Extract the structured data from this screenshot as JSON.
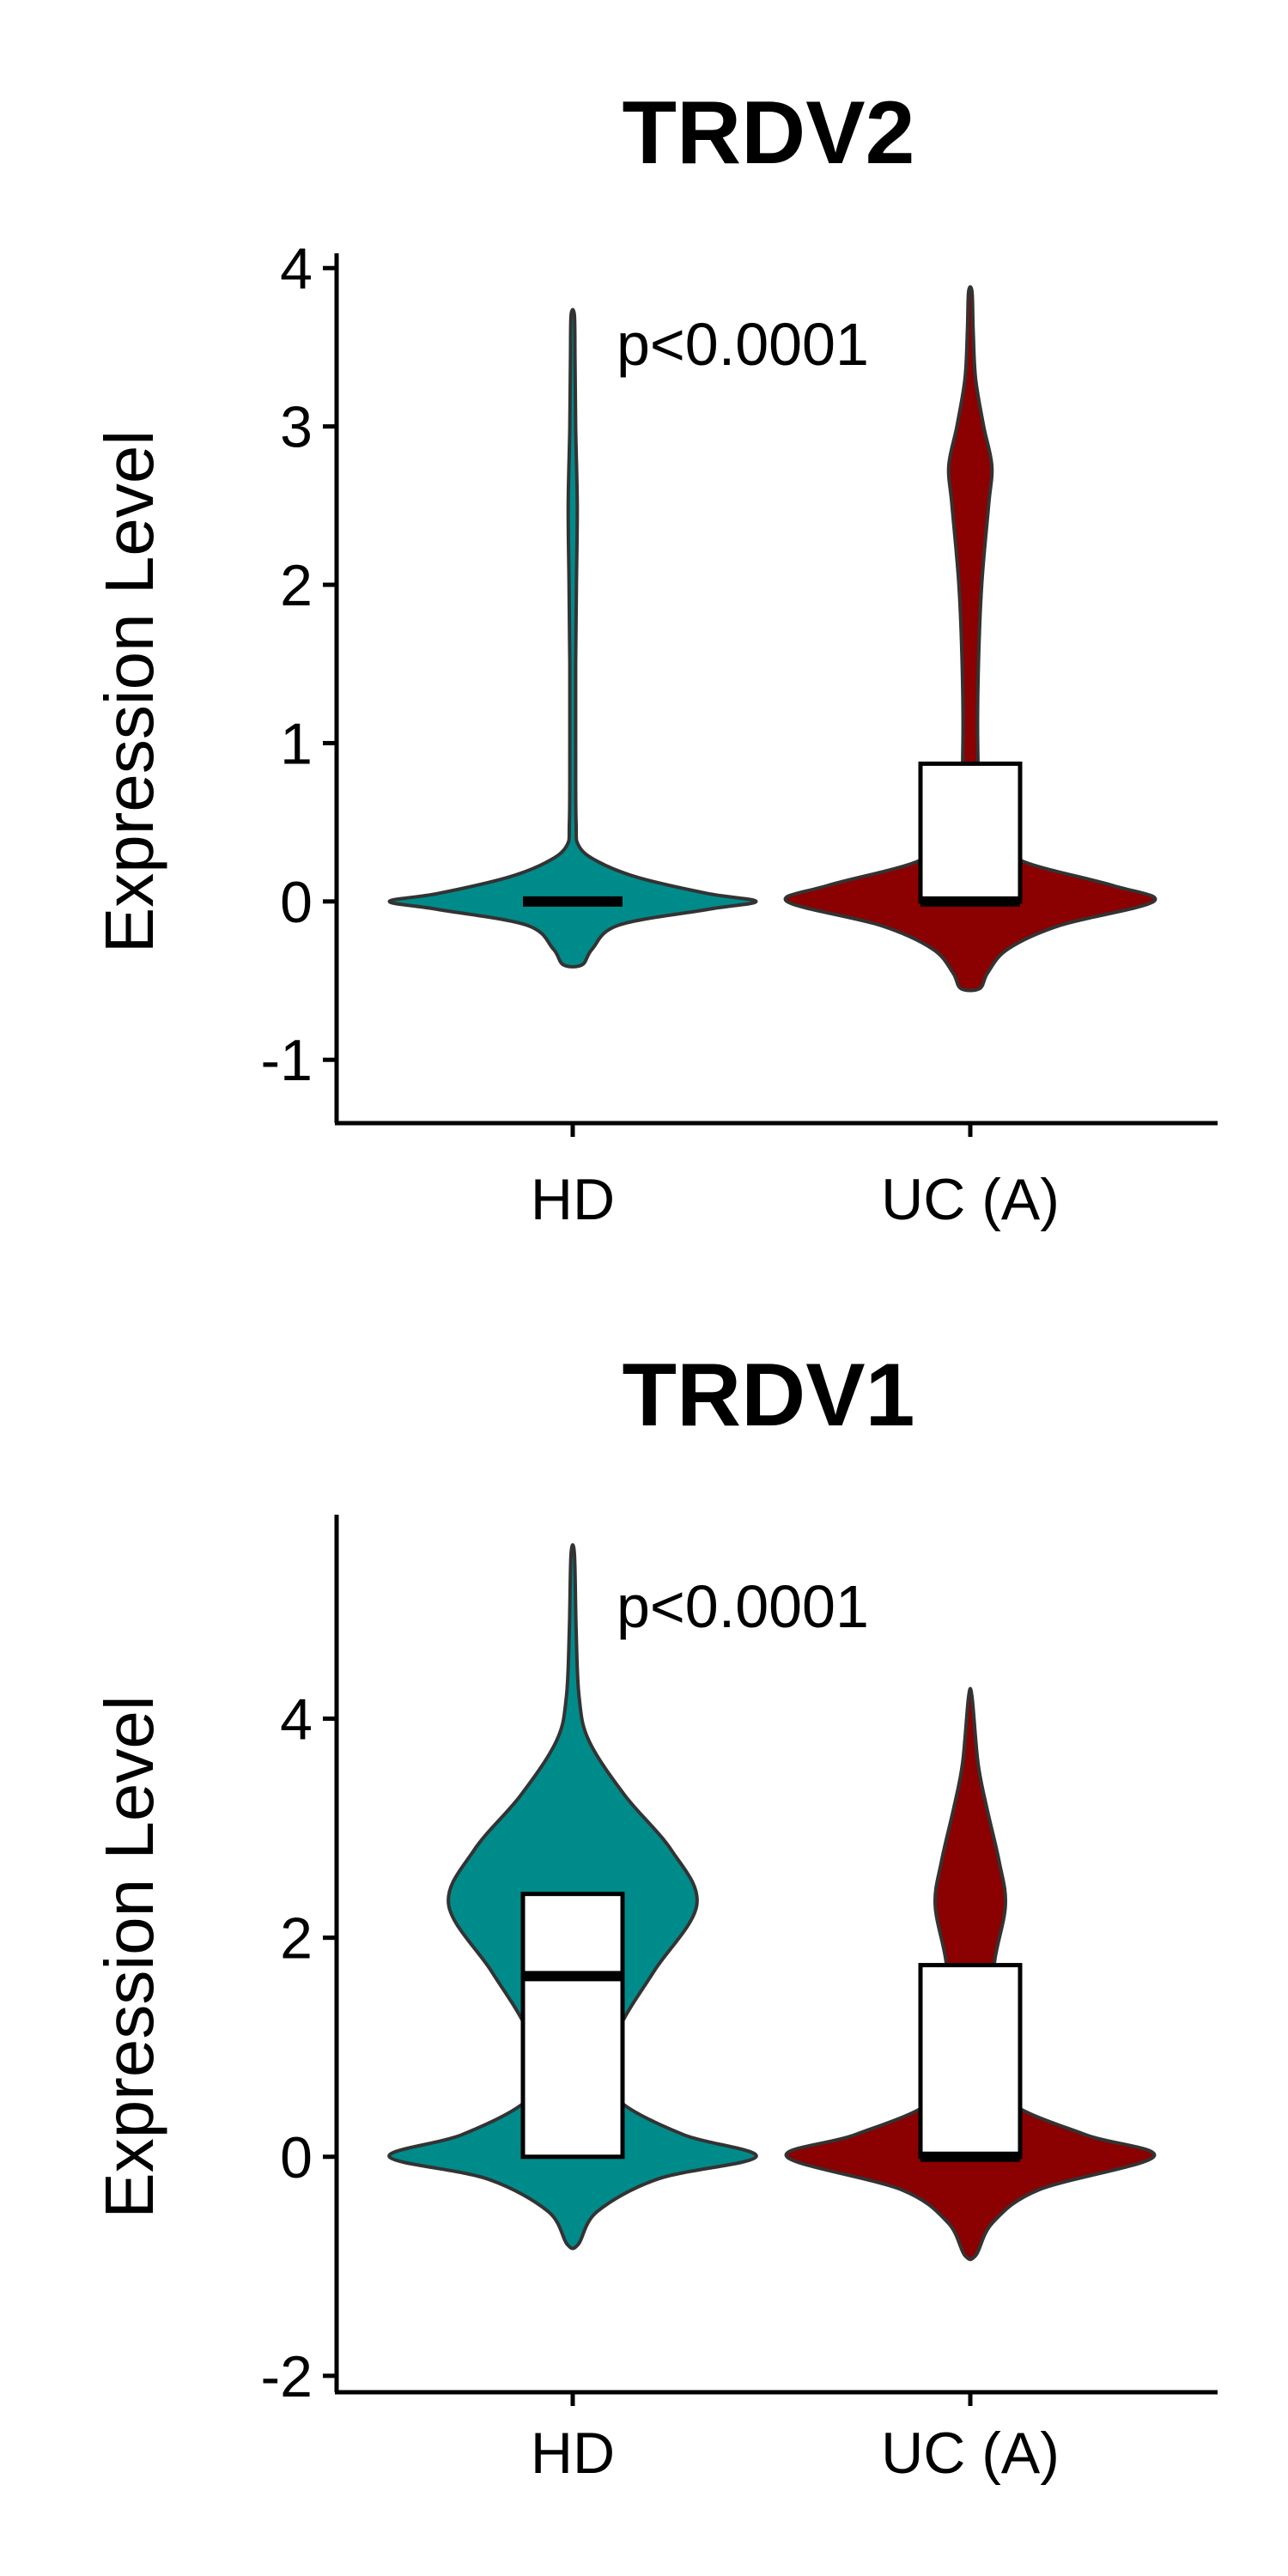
{
  "chart_data": [
    {
      "type": "violin",
      "title": "TRDV2",
      "ylabel": "Expression Level",
      "categories": [
        "HD",
        "UC (A)"
      ],
      "yticks": [
        -1,
        0,
        1,
        2,
        3,
        4
      ],
      "ytick_labels": [
        "-1",
        "0",
        "1",
        "2",
        "3",
        "4"
      ],
      "ylim": [
        -1.4,
        4.05
      ],
      "annotation": "p<0.0001",
      "colors": [
        "#008B8B",
        "#8B0000"
      ],
      "groups": [
        {
          "name": "HD",
          "min": -0.4,
          "max": 3.7,
          "box": {
            "q1": 0,
            "median": 0,
            "q3": 0
          },
          "profile": [
            [
              -0.4,
              0.2
            ],
            [
              -0.3,
              0.45
            ],
            [
              -0.15,
              1.1
            ],
            [
              -0.05,
              3.3
            ],
            [
              0,
              4.5
            ],
            [
              0.05,
              3.3
            ],
            [
              0.15,
              1.6
            ],
            [
              0.25,
              0.6
            ],
            [
              0.35,
              0.12
            ],
            [
              0.5,
              0.05
            ],
            [
              1,
              0.04
            ],
            [
              1.5,
              0.04
            ],
            [
              2,
              0.06
            ],
            [
              2.5,
              0.08
            ],
            [
              3,
              0.04
            ],
            [
              3.4,
              0.025
            ],
            [
              3.7,
              0.01
            ]
          ]
        },
        {
          "name": "UC (A)",
          "min": -0.55,
          "max": 3.85,
          "box": {
            "q1": 0,
            "median": 0,
            "q3": 0.87
          },
          "profile": [
            [
              -0.55,
              0.2
            ],
            [
              -0.45,
              0.4
            ],
            [
              -0.3,
              0.9
            ],
            [
              -0.15,
              2.2
            ],
            [
              0,
              4.5
            ],
            [
              0.1,
              3.5
            ],
            [
              0.25,
              1.3
            ],
            [
              0.4,
              0.5
            ],
            [
              0.6,
              0.22
            ],
            [
              1,
              0.15
            ],
            [
              1.5,
              0.17
            ],
            [
              2,
              0.25
            ],
            [
              2.5,
              0.42
            ],
            [
              2.75,
              0.5
            ],
            [
              3,
              0.3
            ],
            [
              3.3,
              0.1
            ],
            [
              3.6,
              0.04
            ],
            [
              3.85,
              0.01
            ]
          ]
        }
      ]
    },
    {
      "type": "violin",
      "title": "TRDV1",
      "ylabel": "Expression Level",
      "categories": [
        "HD",
        "UC (A)"
      ],
      "yticks": [
        -2,
        0,
        2,
        4
      ],
      "ytick_labels": [
        "-2",
        "0",
        "2",
        "4"
      ],
      "ylim": [
        -2.15,
        5.8
      ],
      "annotation": "p<0.0001",
      "colors": [
        "#008B8B",
        "#8B0000"
      ],
      "groups": [
        {
          "name": "HD",
          "min": -0.8,
          "max": 5.5,
          "box": {
            "q1": 0,
            "median": 1.65,
            "q3": 2.4
          },
          "profile": [
            [
              -0.8,
              0.1
            ],
            [
              -0.5,
              0.55
            ],
            [
              -0.2,
              2.0
            ],
            [
              0,
              4.3
            ],
            [
              0.2,
              2.6
            ],
            [
              0.5,
              1.1
            ],
            [
              0.8,
              0.8
            ],
            [
              1.2,
              1.1
            ],
            [
              1.7,
              1.9
            ],
            [
              2.3,
              2.9
            ],
            [
              2.8,
              2.3
            ],
            [
              3.3,
              1.2
            ],
            [
              3.8,
              0.35
            ],
            [
              4.2,
              0.12
            ],
            [
              4.8,
              0.05
            ],
            [
              5.5,
              0.01
            ]
          ]
        },
        {
          "name": "UC (A)",
          "min": -0.9,
          "max": 4.2,
          "box": {
            "q1": 0,
            "median": 0,
            "q3": 1.75
          },
          "profile": [
            [
              -0.9,
              0.1
            ],
            [
              -0.6,
              0.5
            ],
            [
              -0.3,
              1.6
            ],
            [
              0,
              4.3
            ],
            [
              0.2,
              2.7
            ],
            [
              0.5,
              0.9
            ],
            [
              0.9,
              0.45
            ],
            [
              1.3,
              0.42
            ],
            [
              1.8,
              0.55
            ],
            [
              2.3,
              0.8
            ],
            [
              2.7,
              0.65
            ],
            [
              3.2,
              0.35
            ],
            [
              3.6,
              0.15
            ],
            [
              4.2,
              0.01
            ]
          ]
        }
      ]
    }
  ]
}
